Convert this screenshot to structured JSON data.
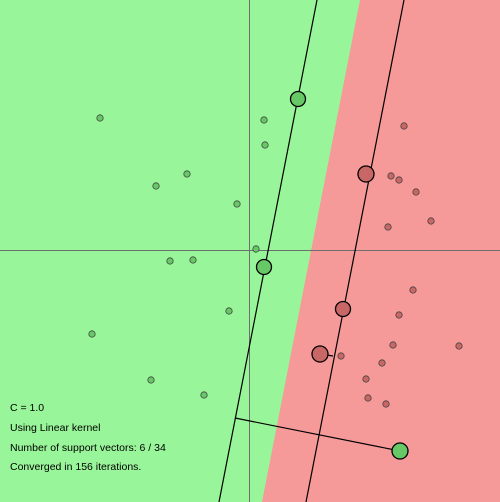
{
  "svm_demo": {
    "status": {
      "c_value": "C = 1.0",
      "kernel": "Using Linear kernel",
      "support_vectors": "Number of support vectors: 6 / 34",
      "iterations": "Converged in 156 iterations."
    },
    "colors": {
      "positive_region": "#99f599",
      "negative_region": "#f59999",
      "positive_point": "#66c966",
      "negative_point": "#c96666",
      "axis": "#6e6e6e",
      "decision_line": "#000000"
    }
  }
}
